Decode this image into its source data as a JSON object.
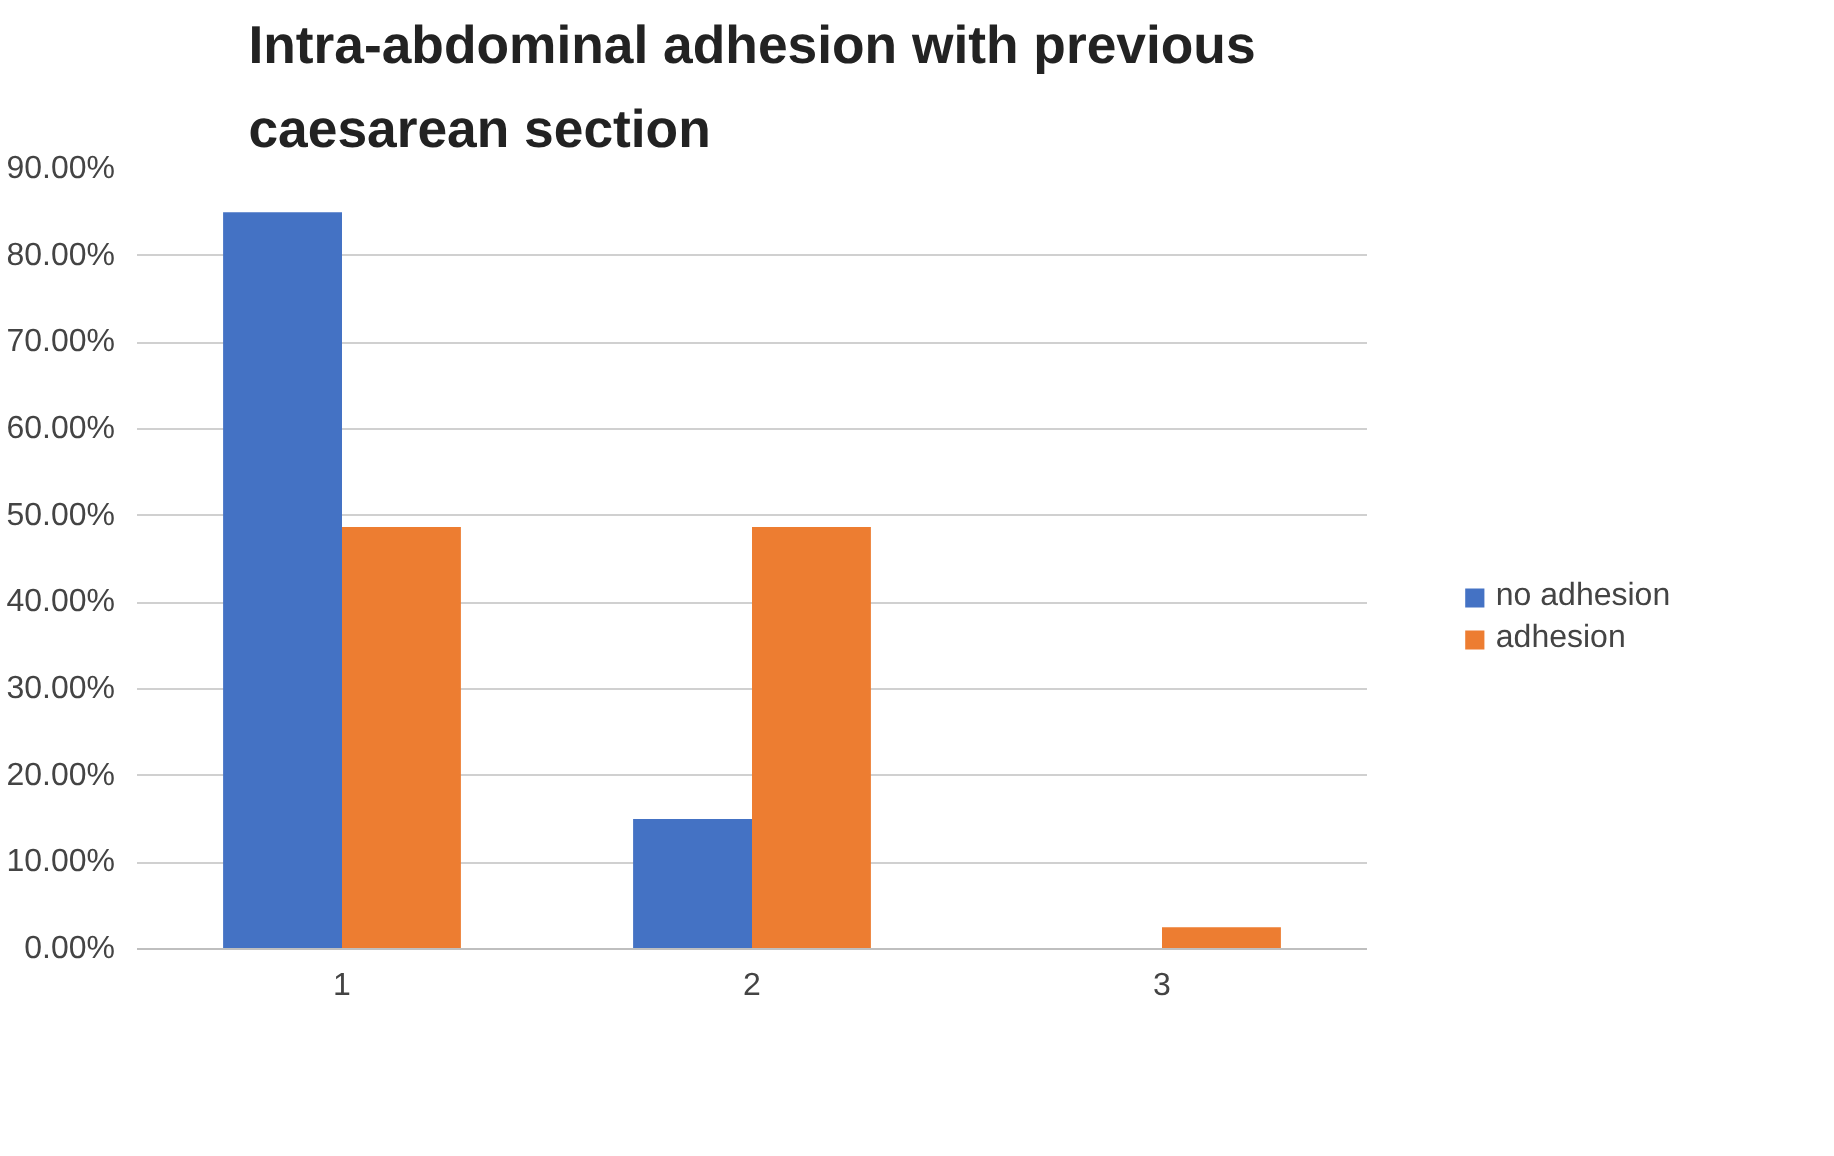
{
  "chart_data": {
    "type": "bar",
    "title": "Intra-abdominal adhesion with previous caesarean section",
    "categories": [
      "1",
      "2",
      "3"
    ],
    "series": [
      {
        "name": "no adhesion",
        "color": "#4472c4",
        "values": [
          85,
          15,
          0
        ]
      },
      {
        "name": "adhesion",
        "color": "#ed7d31",
        "values": [
          48.7,
          48.7,
          2.5
        ]
      }
    ],
    "ylim": [
      0,
      90
    ],
    "yticks": [
      {
        "value": 0,
        "label": "0.00%"
      },
      {
        "value": 10,
        "label": "10.00%"
      },
      {
        "value": 20,
        "label": "20.00%"
      },
      {
        "value": 30,
        "label": "30.00%"
      },
      {
        "value": 40,
        "label": "40.00%"
      },
      {
        "value": 50,
        "label": "50.00%"
      },
      {
        "value": 60,
        "label": "60.00%"
      },
      {
        "value": 70,
        "label": "70.00%"
      },
      {
        "value": 80,
        "label": "80.00%"
      },
      {
        "value": 90,
        "label": "90.00%"
      }
    ],
    "grid": "y",
    "legend": "right"
  }
}
